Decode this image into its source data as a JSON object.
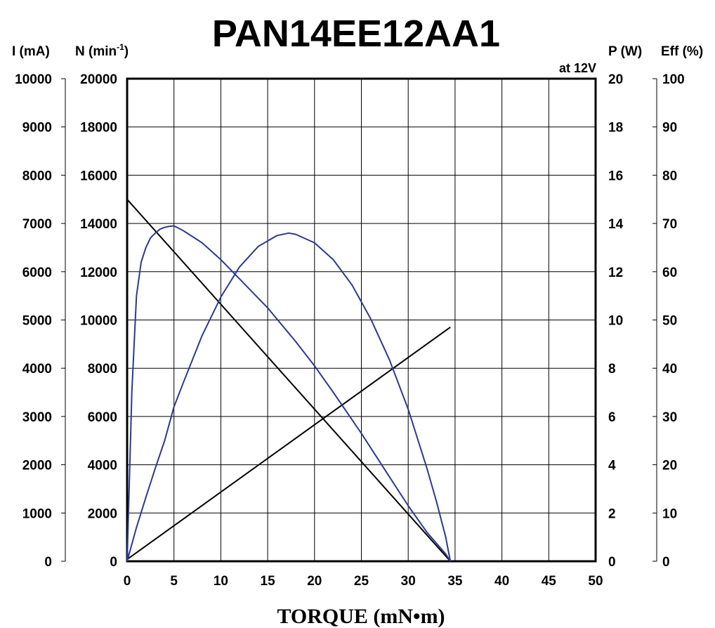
{
  "chart_data": {
    "type": "line",
    "title": "PAN14EE12AA1",
    "note": "at 12V",
    "xlabel": "TORQUE (mN•m)",
    "x_ticks": [
      "0",
      "5",
      "10",
      "15",
      "20",
      "25",
      "30",
      "35",
      "40",
      "45",
      "50"
    ],
    "xlim": [
      0,
      50
    ],
    "grid": true,
    "axes": {
      "current": {
        "label": "I (mA)",
        "range": [
          0,
          10000
        ],
        "ticks": [
          "0",
          "1000",
          "2000",
          "3000",
          "4000",
          "5000",
          "6000",
          "7000",
          "8000",
          "9000",
          "10000"
        ]
      },
      "speed": {
        "label": "N (min",
        "label_sup": "-1",
        "label_end": ")",
        "range": [
          0,
          20000
        ],
        "ticks": [
          "0",
          "2000",
          "4000",
          "6000",
          "8000",
          "10000",
          "12000",
          "14000",
          "16000",
          "18000",
          "20000"
        ]
      },
      "power": {
        "label": "P (W)",
        "range": [
          0,
          20
        ],
        "ticks": [
          "0",
          "2",
          "4",
          "6",
          "8",
          "10",
          "12",
          "14",
          "16",
          "18",
          "20"
        ]
      },
      "efficiency": {
        "label": "Eff (%)",
        "range": [
          0,
          100
        ],
        "ticks": [
          "0",
          "10",
          "20",
          "30",
          "40",
          "50",
          "60",
          "70",
          "80",
          "90",
          "100"
        ]
      }
    },
    "colors": {
      "speed_current": "#000000",
      "power_efficiency": "#2b3a8c"
    },
    "series": [
      {
        "axis": "speed",
        "color": "#000000",
        "x": [
          0,
          34.5
        ],
        "y": [
          15000,
          0
        ]
      },
      {
        "axis": "current",
        "color": "#000000",
        "x": [
          0,
          34.5
        ],
        "y": [
          40,
          4850
        ]
      },
      {
        "axis": "efficiency",
        "color": "#2b3a8c",
        "x": [
          0,
          0.5,
          1,
          1.5,
          2,
          2.5,
          3,
          3.5,
          4,
          4.5,
          5,
          6,
          8,
          10,
          12,
          15,
          18,
          20,
          22,
          25,
          28,
          30,
          32,
          34,
          34.5
        ],
        "y": [
          0,
          35,
          55,
          62,
          65,
          67,
          68,
          68.8,
          69.2,
          69.4,
          69.5,
          68.5,
          66,
          62.5,
          58.5,
          52.5,
          45.5,
          40.5,
          35,
          26.5,
          17.5,
          11.5,
          6,
          1.5,
          0
        ]
      },
      {
        "axis": "power",
        "color": "#2b3a8c",
        "x": [
          0,
          1,
          2,
          3,
          4,
          5,
          6,
          8,
          10,
          12,
          14,
          16,
          17.25,
          18,
          20,
          22,
          24,
          26,
          28,
          30,
          32,
          33,
          34,
          34.5
        ],
        "y": [
          0,
          1.4,
          2.65,
          3.85,
          5.0,
          6.4,
          7.4,
          9.35,
          10.95,
          12.2,
          13.05,
          13.5,
          13.6,
          13.55,
          13.2,
          12.5,
          11.45,
          10.05,
          8.35,
          6.3,
          3.85,
          2.5,
          1.0,
          0
        ]
      }
    ]
  }
}
